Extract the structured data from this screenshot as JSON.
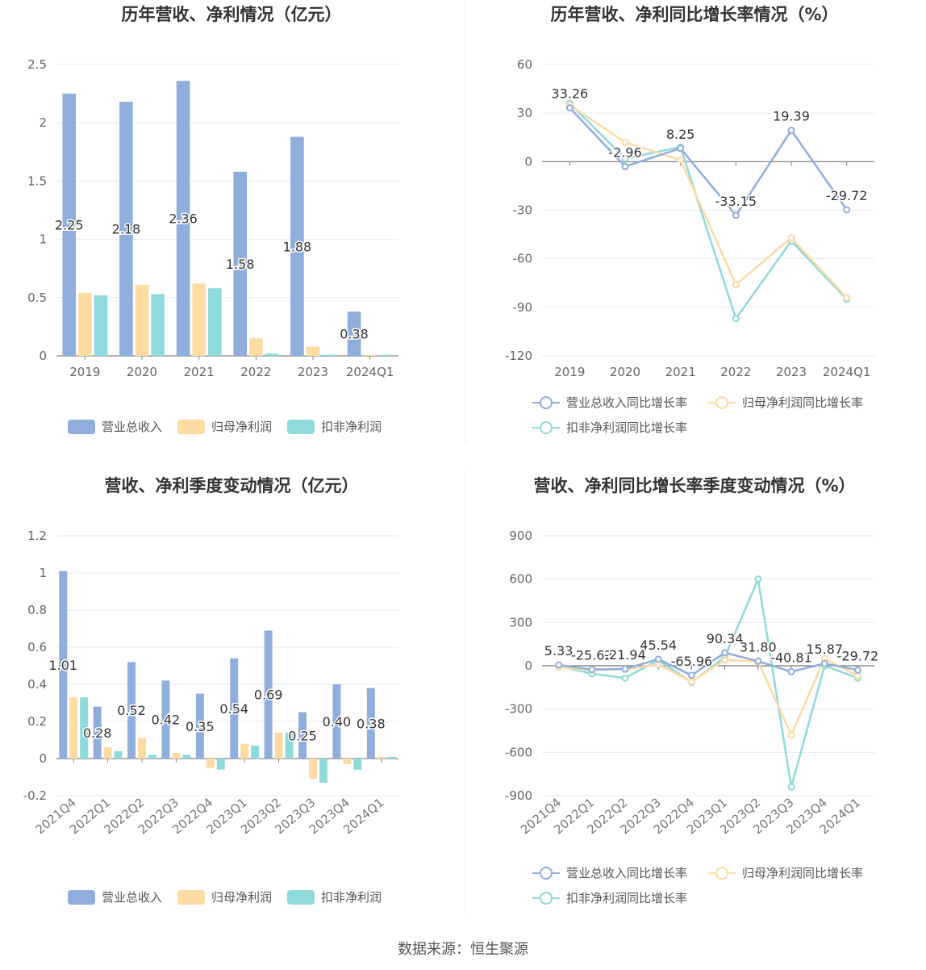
{
  "source_label": "数据来源：恒生聚源",
  "colors": {
    "revenue": "#8FAEDC",
    "net": "#FDDBA2",
    "deducted": "#8FDADA",
    "revenue_line": "#8FAEDC",
    "net_line": "#FDDBA2",
    "deducted_line": "#8FDADA"
  },
  "chart_data": [
    {
      "type": "bar",
      "title": "历年营收、净利情况（亿元）",
      "categories": [
        "2019",
        "2020",
        "2021",
        "2022",
        "2023",
        "2024Q1"
      ],
      "series": [
        {
          "name": "营业总收入",
          "values": [
            2.25,
            2.18,
            2.36,
            1.58,
            1.88,
            0.38
          ]
        },
        {
          "name": "归母净利润",
          "values": [
            0.54,
            0.61,
            0.62,
            0.15,
            0.08,
            0.01
          ]
        },
        {
          "name": "扣非净利润",
          "values": [
            0.52,
            0.53,
            0.58,
            0.02,
            0.01,
            0.01
          ]
        }
      ],
      "data_labels": [
        "2.25",
        "2.18",
        "2.36",
        "1.58",
        "1.88",
        "0.38"
      ],
      "ylim": [
        0,
        2.5
      ],
      "yticks": [
        "0",
        "0.5",
        "1",
        "1.5",
        "2",
        "2.5"
      ],
      "ytick_values": [
        0,
        0.5,
        1,
        1.5,
        2,
        2.5
      ],
      "legend_position": "bottom"
    },
    {
      "type": "line",
      "title": "历年营收、净利同比增长率情况（%）",
      "categories": [
        "2019",
        "2020",
        "2021",
        "2022",
        "2023",
        "2024Q1"
      ],
      "series": [
        {
          "name": "营业总收入同比增长率",
          "values": [
            33.26,
            -2.96,
            8.25,
            -33.15,
            19.39,
            -29.72
          ]
        },
        {
          "name": "归母净利润同比增长率",
          "values": [
            35,
            12,
            1,
            -76,
            -47,
            -84
          ]
        },
        {
          "name": "扣非净利润同比增长率",
          "values": [
            36,
            2,
            9,
            -97,
            -49,
            -85
          ]
        }
      ],
      "data_labels": [
        "33.26",
        "-2.96",
        "8.25",
        "-33.15",
        "19.39",
        "-29.72"
      ],
      "ylim": [
        -120,
        60
      ],
      "yticks": [
        "-120",
        "-90",
        "-60",
        "-30",
        "0",
        "30",
        "60"
      ],
      "ytick_values": [
        -120,
        -90,
        -60,
        -30,
        0,
        30,
        60
      ],
      "legend_position": "bottom"
    },
    {
      "type": "bar",
      "title": "营收、净利季度变动情况（亿元）",
      "categories": [
        "2021Q4",
        "2022Q1",
        "2022Q2",
        "2022Q3",
        "2022Q4",
        "2023Q1",
        "2023Q2",
        "2023Q3",
        "2023Q4",
        "2024Q1"
      ],
      "series": [
        {
          "name": "营业总收入",
          "values": [
            1.01,
            0.28,
            0.52,
            0.42,
            0.35,
            0.54,
            0.69,
            0.25,
            0.4,
            0.38
          ]
        },
        {
          "name": "归母净利润",
          "values": [
            0.33,
            0.06,
            0.11,
            0.03,
            -0.05,
            0.08,
            0.14,
            -0.11,
            -0.03,
            0.01
          ]
        },
        {
          "name": "扣非净利润",
          "values": [
            0.33,
            0.04,
            0.02,
            0.02,
            -0.06,
            0.07,
            0.14,
            -0.13,
            -0.06,
            0.01
          ]
        }
      ],
      "data_labels": [
        "1.01",
        "0.28",
        "0.52",
        "0.42",
        "0.35",
        "0.54",
        "0.69",
        "0.25",
        "0.40",
        "0.38"
      ],
      "ylim": [
        -0.2,
        1.2
      ],
      "yticks": [
        "-0.2",
        "0",
        "0.2",
        "0.4",
        "0.6",
        "0.8",
        "1",
        "1.2"
      ],
      "ytick_values": [
        -0.2,
        0,
        0.2,
        0.4,
        0.6,
        0.8,
        1,
        1.2
      ],
      "legend_position": "bottom"
    },
    {
      "type": "line",
      "title": "营收、净利同比增长率季度变动情况（%）",
      "categories": [
        "2021Q4",
        "2022Q1",
        "2022Q2",
        "2022Q3",
        "2022Q4",
        "2023Q1",
        "2023Q2",
        "2023Q3",
        "2023Q4",
        "2024Q1"
      ],
      "series": [
        {
          "name": "营业总收入同比增长率",
          "values": [
            5.33,
            -25.62,
            -21.94,
            45.54,
            -65.96,
            90.34,
            31.8,
            -40.81,
            15.87,
            -29.72
          ]
        },
        {
          "name": "归母净利润同比增长率",
          "values": [
            -10,
            -30,
            -25,
            10,
            -110,
            40,
            30,
            -480,
            50,
            -70
          ]
        },
        {
          "name": "扣非净利润同比增长率",
          "values": [
            0,
            -55,
            -85,
            40,
            -115,
            60,
            600,
            -840,
            0,
            -85
          ]
        }
      ],
      "data_labels": [
        "5.33",
        "-25.62",
        "-21.94",
        "45.54",
        "-65.96",
        "90.34",
        "31.80",
        "-40.81",
        "15.87",
        "-29.72"
      ],
      "ylim": [
        -900,
        900
      ],
      "yticks": [
        "-900",
        "-600",
        "-300",
        "0",
        "300",
        "600",
        "900"
      ],
      "ytick_values": [
        -900,
        -600,
        -300,
        0,
        300,
        600,
        900
      ],
      "legend_position": "bottom"
    }
  ]
}
